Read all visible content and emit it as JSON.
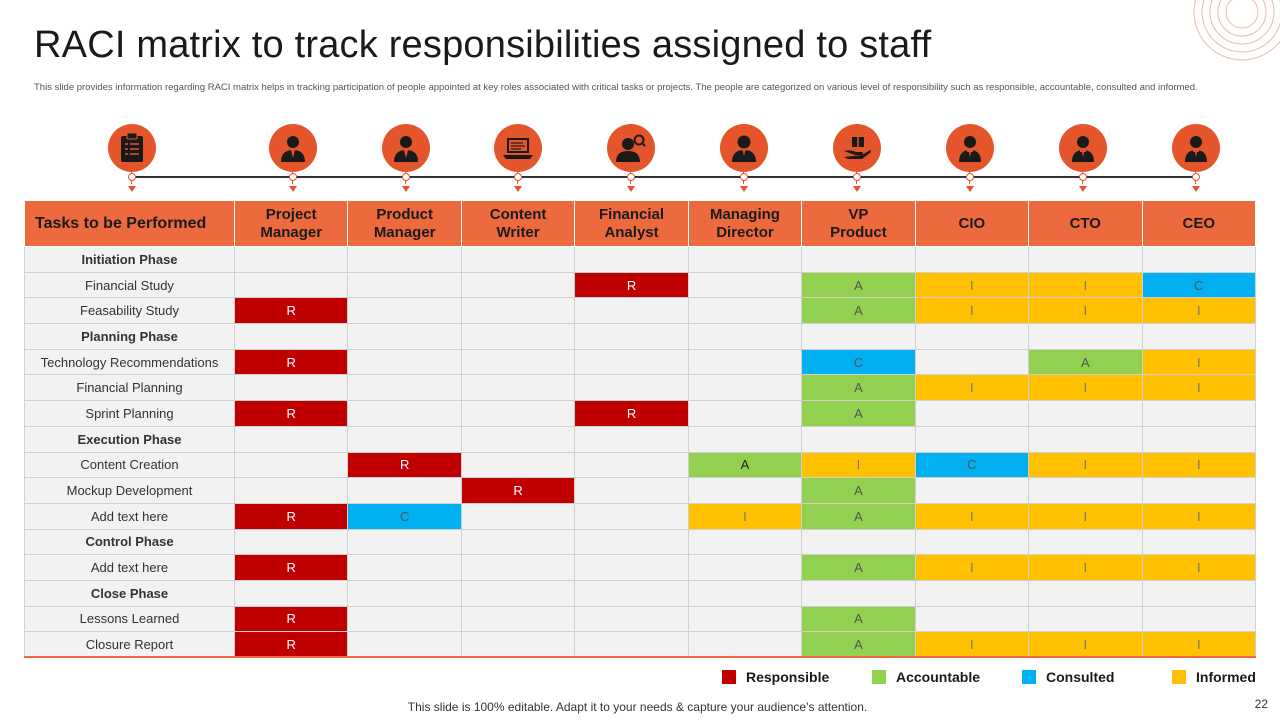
{
  "title": "RACI matrix to track responsibilities assigned to staff",
  "subtitle": "This slide provides information regarding RACI matrix helps in tracking participation of people appointed at key roles associated with critical tasks or projects. The people are categorized on various level of responsibility such as responsible, accountable, consulted and informed.",
  "role_icons": [
    "checklist-icon",
    "manager-icon",
    "manager-icon",
    "laptop-icon",
    "analyst-icon",
    "director-icon",
    "product-hand-icon",
    "executive-icon",
    "executive-icon",
    "executive-icon"
  ],
  "header": {
    "task": "Tasks to be Performed",
    "roles": [
      "Project\nManager",
      "Product\nManager",
      "Content\nWriter",
      "Financial\nAnalyst",
      "Managing\nDirector",
      "VP\nProduct",
      "CIO",
      "CTO",
      "CEO"
    ]
  },
  "rows": [
    {
      "task": "Initiation Phase",
      "phase": true,
      "cells": [
        "",
        "",
        "",
        "",
        "",
        "",
        "",
        "",
        ""
      ]
    },
    {
      "task": "Financial Study",
      "phase": false,
      "cells": [
        "",
        "",
        "",
        "R",
        "",
        "A",
        "I",
        "I",
        "C"
      ]
    },
    {
      "task": "Feasability Study",
      "phase": false,
      "cells": [
        "R",
        "",
        "",
        "",
        "",
        "A",
        "I",
        "I",
        "I"
      ]
    },
    {
      "task": "Planning Phase",
      "phase": true,
      "cells": [
        "",
        "",
        "",
        "",
        "",
        "",
        "",
        "",
        ""
      ]
    },
    {
      "task": "Technology Recommendations",
      "phase": false,
      "cells": [
        "R",
        "",
        "",
        "",
        "",
        "C",
        "",
        "A",
        "I"
      ]
    },
    {
      "task": "Financial Planning",
      "phase": false,
      "cells": [
        "",
        "",
        "",
        "",
        "",
        "A",
        "I",
        "I",
        "I"
      ]
    },
    {
      "task": "Sprint Planning",
      "phase": false,
      "cells": [
        "R",
        "",
        "",
        "R",
        "",
        "A",
        "",
        "",
        ""
      ]
    },
    {
      "task": "Execution Phase",
      "phase": true,
      "cells": [
        "",
        "",
        "",
        "",
        "",
        "",
        "",
        "",
        ""
      ]
    },
    {
      "task": "Content Creation",
      "phase": false,
      "cells": [
        "",
        "R",
        "",
        "",
        "A",
        "I",
        "C",
        "I",
        "I"
      ]
    },
    {
      "task": "Mockup Development",
      "phase": false,
      "cells": [
        "",
        "",
        "R",
        "",
        "",
        "A",
        "",
        "",
        ""
      ]
    },
    {
      "task": "Add text here",
      "phase": false,
      "cells": [
        "R",
        "C",
        "",
        "",
        "I",
        "A",
        "I",
        "I",
        "I"
      ]
    },
    {
      "task": "Control Phase",
      "phase": true,
      "cells": [
        "",
        "",
        "",
        "",
        "",
        "",
        "",
        "",
        ""
      ]
    },
    {
      "task": "Add text here",
      "phase": false,
      "cells": [
        "R",
        "",
        "",
        "",
        "",
        "A",
        "I",
        "I",
        "I"
      ]
    },
    {
      "task": "Close Phase",
      "phase": true,
      "cells": [
        "",
        "",
        "",
        "",
        "",
        "",
        "",
        "",
        ""
      ]
    },
    {
      "task": "Lessons Learned",
      "phase": false,
      "cells": [
        "R",
        "",
        "",
        "",
        "",
        "A",
        "",
        "",
        ""
      ]
    },
    {
      "task": "Closure Report",
      "phase": false,
      "cells": [
        "R",
        "",
        "",
        "",
        "",
        "A",
        "I",
        "I",
        "I"
      ]
    }
  ],
  "legend": [
    {
      "key": "R",
      "label": "Responsible",
      "color": "#c00000"
    },
    {
      "key": "A",
      "label": "Accountable",
      "color": "#92d050"
    },
    {
      "key": "C",
      "label": "Consulted",
      "color": "#00b0f0"
    },
    {
      "key": "I",
      "label": "Informed",
      "color": "#ffc000"
    }
  ],
  "colors": {
    "accent": "#e4552c",
    "header": "#ed6a3f"
  },
  "footer": "This slide is 100% editable. Adapt it to your needs & capture your audience’s attention.",
  "page_number": "22"
}
